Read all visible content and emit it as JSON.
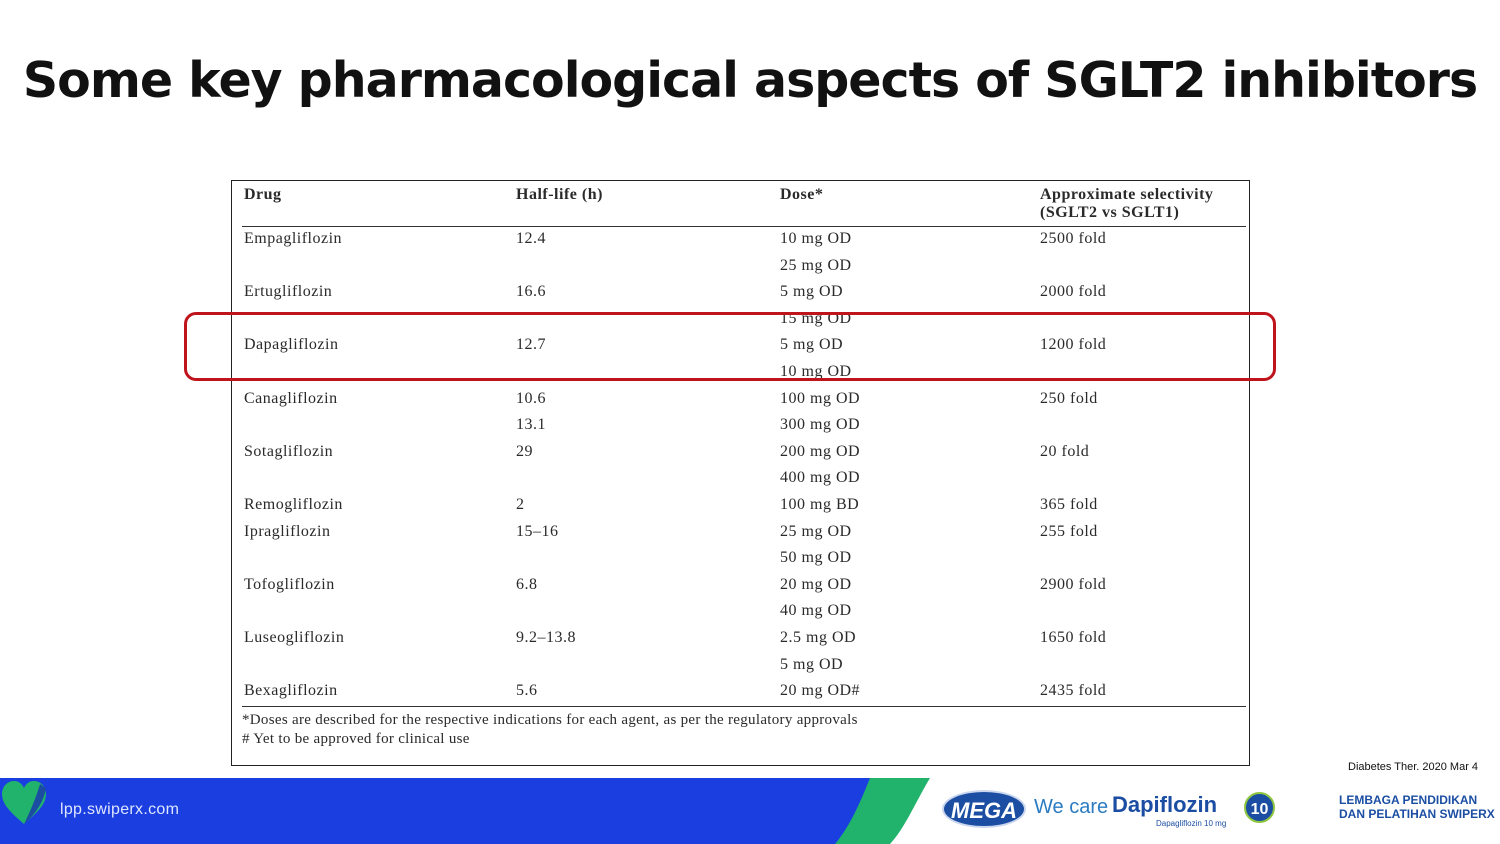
{
  "slide": {
    "title": "Some key pharmacological aspects of SGLT2 inhibitors",
    "citation": "Diabetes Ther. 2020 Mar 4"
  },
  "table": {
    "headers": {
      "drug": "Drug",
      "half_life": "Half-life (h)",
      "dose": "Dose*",
      "selectivity_line1": "Approximate selectivity",
      "selectivity_line2": "(SGLT2 vs SGLT1)"
    },
    "rows": [
      {
        "drug": "Empagliflozin",
        "half_life": "12.4",
        "dose": "10 mg OD",
        "selectivity": "2500 fold"
      },
      {
        "drug": "",
        "half_life": "",
        "dose": "25 mg OD",
        "selectivity": ""
      },
      {
        "drug": "Ertugliflozin",
        "half_life": "16.6",
        "dose": "5 mg OD",
        "selectivity": "2000 fold"
      },
      {
        "drug": "",
        "half_life": "",
        "dose": "15 mg OD",
        "selectivity": ""
      },
      {
        "drug": "Dapagliflozin",
        "half_life": "12.7",
        "dose": "5 mg OD",
        "selectivity": "1200 fold"
      },
      {
        "drug": "",
        "half_life": "",
        "dose": "10 mg OD",
        "selectivity": ""
      },
      {
        "drug": "Canagliflozin",
        "half_life": "10.6",
        "dose": "100 mg OD",
        "selectivity": "250 fold"
      },
      {
        "drug": "",
        "half_life": "13.1",
        "dose": "300 mg OD",
        "selectivity": ""
      },
      {
        "drug": "Sotagliflozin",
        "half_life": "29",
        "dose": "200 mg OD",
        "selectivity": "20 fold"
      },
      {
        "drug": "",
        "half_life": "",
        "dose": "400 mg OD",
        "selectivity": ""
      },
      {
        "drug": "Remogliflozin",
        "half_life": "2",
        "dose": "100 mg BD",
        "selectivity": "365 fold"
      },
      {
        "drug": "Ipragliflozin",
        "half_life": "15–16",
        "dose": "25 mg OD",
        "selectivity": "255 fold"
      },
      {
        "drug": "",
        "half_life": "",
        "dose": "50 mg OD",
        "selectivity": ""
      },
      {
        "drug": "Tofogliflozin",
        "half_life": "6.8",
        "dose": "20 mg OD",
        "selectivity": "2900 fold"
      },
      {
        "drug": "",
        "half_life": "",
        "dose": "40 mg OD",
        "selectivity": ""
      },
      {
        "drug": "Luseogliflozin",
        "half_life": "9.2–13.8",
        "dose": "2.5 mg OD",
        "selectivity": "1650 fold"
      },
      {
        "drug": "",
        "half_life": "",
        "dose": "5 mg OD",
        "selectivity": ""
      },
      {
        "drug": "Bexagliflozin",
        "half_life": "5.6",
        "dose": "20 mg OD#",
        "selectivity": "2435 fold"
      }
    ],
    "footnotes": [
      "*Doses are described for the respective indications for each agent, as per the regulatory approvals",
      "# Yet to be approved for clinical use"
    ]
  },
  "footer": {
    "website": "lpp.swiperx.com",
    "mega_logo": "MEGA",
    "tagline": "We care",
    "product_name": "Dapiflozin",
    "product_sub": "Dapagliflozin 10 mg",
    "product_badge": "10",
    "org_line1": "LEMBAGA PENDIDIKAN",
    "org_line2": "DAN PELATIHAN SWIPERX",
    "colors": {
      "blue": "#1a3ee0",
      "green": "#21b36b",
      "highlight": "#c0141d"
    }
  }
}
